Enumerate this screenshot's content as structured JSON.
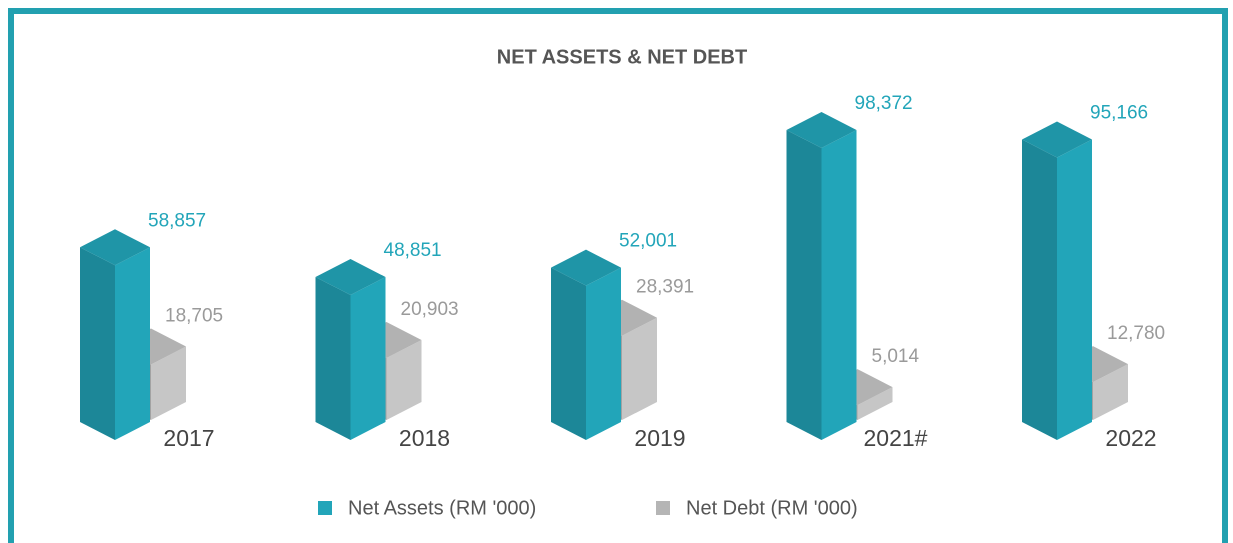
{
  "chart_data": {
    "type": "bar3d",
    "title": "NET ASSETS & NET DEBT",
    "categories": [
      "2017",
      "2018",
      "2019",
      "2021#",
      "2022"
    ],
    "series": [
      {
        "name": "Net Assets (RM '000)",
        "color": "#22a5b9",
        "values": [
          58857,
          48851,
          52001,
          98372,
          95166
        ],
        "value_labels": [
          "58,857",
          "48,851",
          "52,001",
          "98,372",
          "95,166"
        ]
      },
      {
        "name": "Net Debt (RM '000)",
        "color": "#c6c6c6",
        "values": [
          18705,
          20903,
          28391,
          5014,
          12780
        ],
        "value_labels": [
          "18,705",
          "20,903",
          "28,391",
          "5,014",
          "12,780"
        ]
      }
    ],
    "legend": "bottom"
  }
}
